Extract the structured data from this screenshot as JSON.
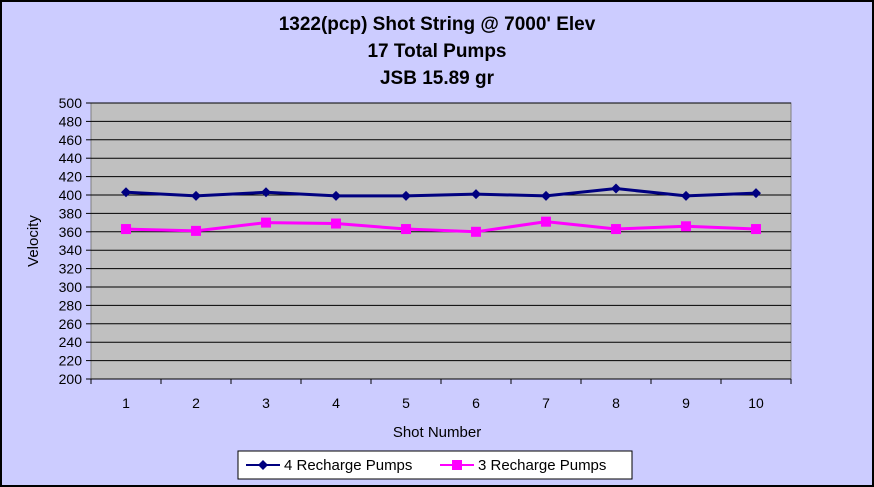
{
  "chart_data": {
    "type": "line",
    "title_lines": [
      "1322(pcp) Shot String @ 7000' Elev",
      "17 Total Pumps",
      "JSB 15.89 gr"
    ],
    "xlabel": "Shot Number",
    "ylabel": "Velocity",
    "categories": [
      "1",
      "2",
      "3",
      "4",
      "5",
      "6",
      "7",
      "8",
      "9",
      "10"
    ],
    "ylim": [
      200,
      500
    ],
    "ytick_step": 20,
    "yticks": [
      "200",
      "220",
      "240",
      "260",
      "280",
      "300",
      "320",
      "340",
      "360",
      "380",
      "400",
      "420",
      "440",
      "460",
      "480",
      "500"
    ],
    "grid": "horizontal",
    "legend_position": "bottom",
    "plot_background": "#c0c0c0",
    "chart_background": "#ccccff",
    "series": [
      {
        "name": "4 Recharge Pumps",
        "color": "#000080",
        "marker": "diamond",
        "values": [
          403,
          399,
          403,
          399,
          399,
          401,
          399,
          407,
          399,
          402
        ]
      },
      {
        "name": "3 Recharge Pumps",
        "color": "#ff00ff",
        "marker": "square",
        "values": [
          363,
          361,
          370,
          369,
          363,
          360,
          371,
          363,
          366,
          363
        ]
      }
    ]
  }
}
